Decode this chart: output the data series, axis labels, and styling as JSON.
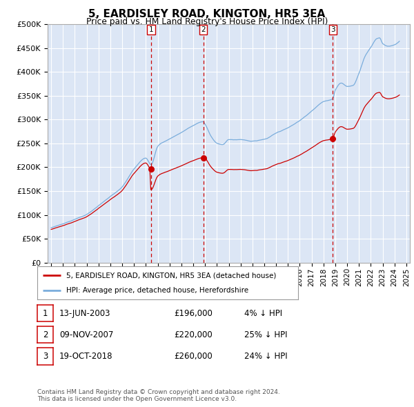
{
  "title": "5, EARDISLEY ROAD, KINGTON, HR5 3EA",
  "subtitle": "Price paid vs. HM Land Registry's House Price Index (HPI)",
  "background_color": "#ffffff",
  "plot_background": "#dce6f5",
  "grid_color": "#ffffff",
  "ylim": [
    0,
    500000
  ],
  "yticks": [
    0,
    50000,
    100000,
    150000,
    200000,
    250000,
    300000,
    350000,
    400000,
    450000,
    500000
  ],
  "ytick_labels": [
    "£0",
    "£50K",
    "£100K",
    "£150K",
    "£200K",
    "£250K",
    "£300K",
    "£350K",
    "£400K",
    "£450K",
    "£500K"
  ],
  "xlim_start": 1994.7,
  "xlim_end": 2025.3,
  "red_line_color": "#cc0000",
  "blue_line_color": "#7aaddc",
  "sale_marker_color": "#cc0000",
  "sale_dates": [
    2003.44,
    2007.85,
    2018.79
  ],
  "sale_prices": [
    196000,
    220000,
    260000
  ],
  "sale_labels": [
    "1",
    "2",
    "3"
  ],
  "legend_line1": "5, EARDISLEY ROAD, KINGTON, HR5 3EA (detached house)",
  "legend_line2": "HPI: Average price, detached house, Herefordshire",
  "table_data": [
    [
      "1",
      "13-JUN-2003",
      "£196,000",
      "4% ↓ HPI"
    ],
    [
      "2",
      "09-NOV-2007",
      "£220,000",
      "25% ↓ HPI"
    ],
    [
      "3",
      "19-OCT-2018",
      "£260,000",
      "24% ↓ HPI"
    ]
  ],
  "footnote": "Contains HM Land Registry data © Crown copyright and database right 2024.\nThis data is licensed under the Open Government Licence v3.0."
}
